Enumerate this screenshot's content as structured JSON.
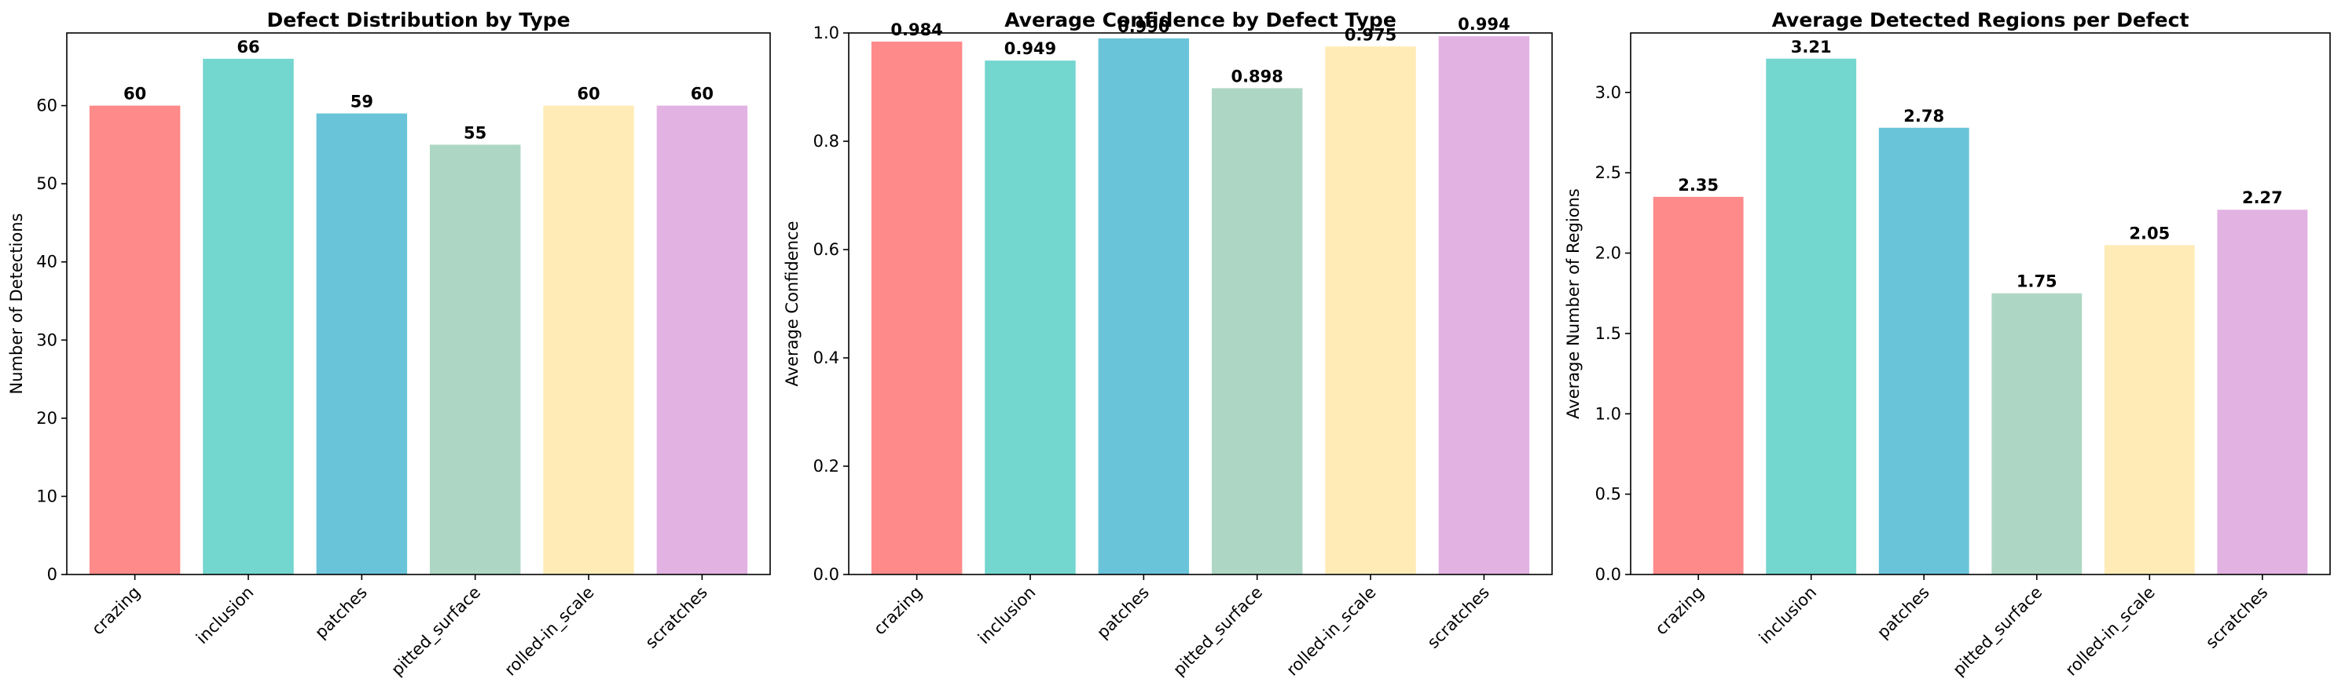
{
  "chart_data": [
    {
      "type": "bar",
      "title": "Defect Distribution by Type",
      "xlabel": "",
      "ylabel": "Number of Detections",
      "categories": [
        "crazing",
        "inclusion",
        "patches",
        "pitted_surface",
        "rolled-in_scale",
        "scratches"
      ],
      "values": [
        60,
        66,
        59,
        55,
        60,
        60
      ],
      "value_labels": [
        "60",
        "66",
        "59",
        "55",
        "60",
        "60"
      ],
      "ylim": [
        0,
        69.3
      ],
      "yticks": [
        0,
        10,
        20,
        30,
        40,
        50,
        60
      ],
      "ytick_labels": [
        "0",
        "10",
        "20",
        "30",
        "40",
        "50",
        "60"
      ],
      "colors": [
        "#FF8A8A",
        "#73D6CF",
        "#69C4D9",
        "#ADD7C4",
        "#FFEBB6",
        "#E2B2E2"
      ],
      "grid": false
    },
    {
      "type": "bar",
      "title": "Average Confidence by Defect Type",
      "xlabel": "",
      "ylabel": "Average Confidence",
      "categories": [
        "crazing",
        "inclusion",
        "patches",
        "pitted_surface",
        "rolled-in_scale",
        "scratches"
      ],
      "values": [
        0.984,
        0.949,
        0.99,
        0.898,
        0.975,
        0.994
      ],
      "value_labels": [
        "0.984",
        "0.949",
        "0.990",
        "0.898",
        "0.975",
        "0.994"
      ],
      "ylim": [
        0,
        1.0
      ],
      "yticks": [
        0,
        0.2,
        0.4,
        0.6,
        0.8,
        1.0
      ],
      "ytick_labels": [
        "0.0",
        "0.2",
        "0.4",
        "0.6",
        "0.8",
        "1.0"
      ],
      "colors": [
        "#FF8A8A",
        "#73D6CF",
        "#69C4D9",
        "#ADD7C4",
        "#FFEBB6",
        "#E2B2E2"
      ],
      "grid": false
    },
    {
      "type": "bar",
      "title": "Average Detected Regions per Defect",
      "xlabel": "",
      "ylabel": "Average Number of Regions",
      "categories": [
        "crazing",
        "inclusion",
        "patches",
        "pitted_surface",
        "rolled-in_scale",
        "scratches"
      ],
      "values": [
        2.35,
        3.21,
        2.78,
        1.75,
        2.05,
        2.27
      ],
      "value_labels": [
        "2.35",
        "3.21",
        "2.78",
        "1.75",
        "2.05",
        "2.27"
      ],
      "ylim": [
        0,
        3.37
      ],
      "yticks": [
        0,
        0.5,
        1.0,
        1.5,
        2.0,
        2.5,
        3.0
      ],
      "ytick_labels": [
        "0.0",
        "0.5",
        "1.0",
        "1.5",
        "2.0",
        "2.5",
        "3.0"
      ],
      "colors": [
        "#FF8A8A",
        "#73D6CF",
        "#69C4D9",
        "#ADD7C4",
        "#FFEBB6",
        "#E2B2E2"
      ],
      "grid": false
    }
  ]
}
